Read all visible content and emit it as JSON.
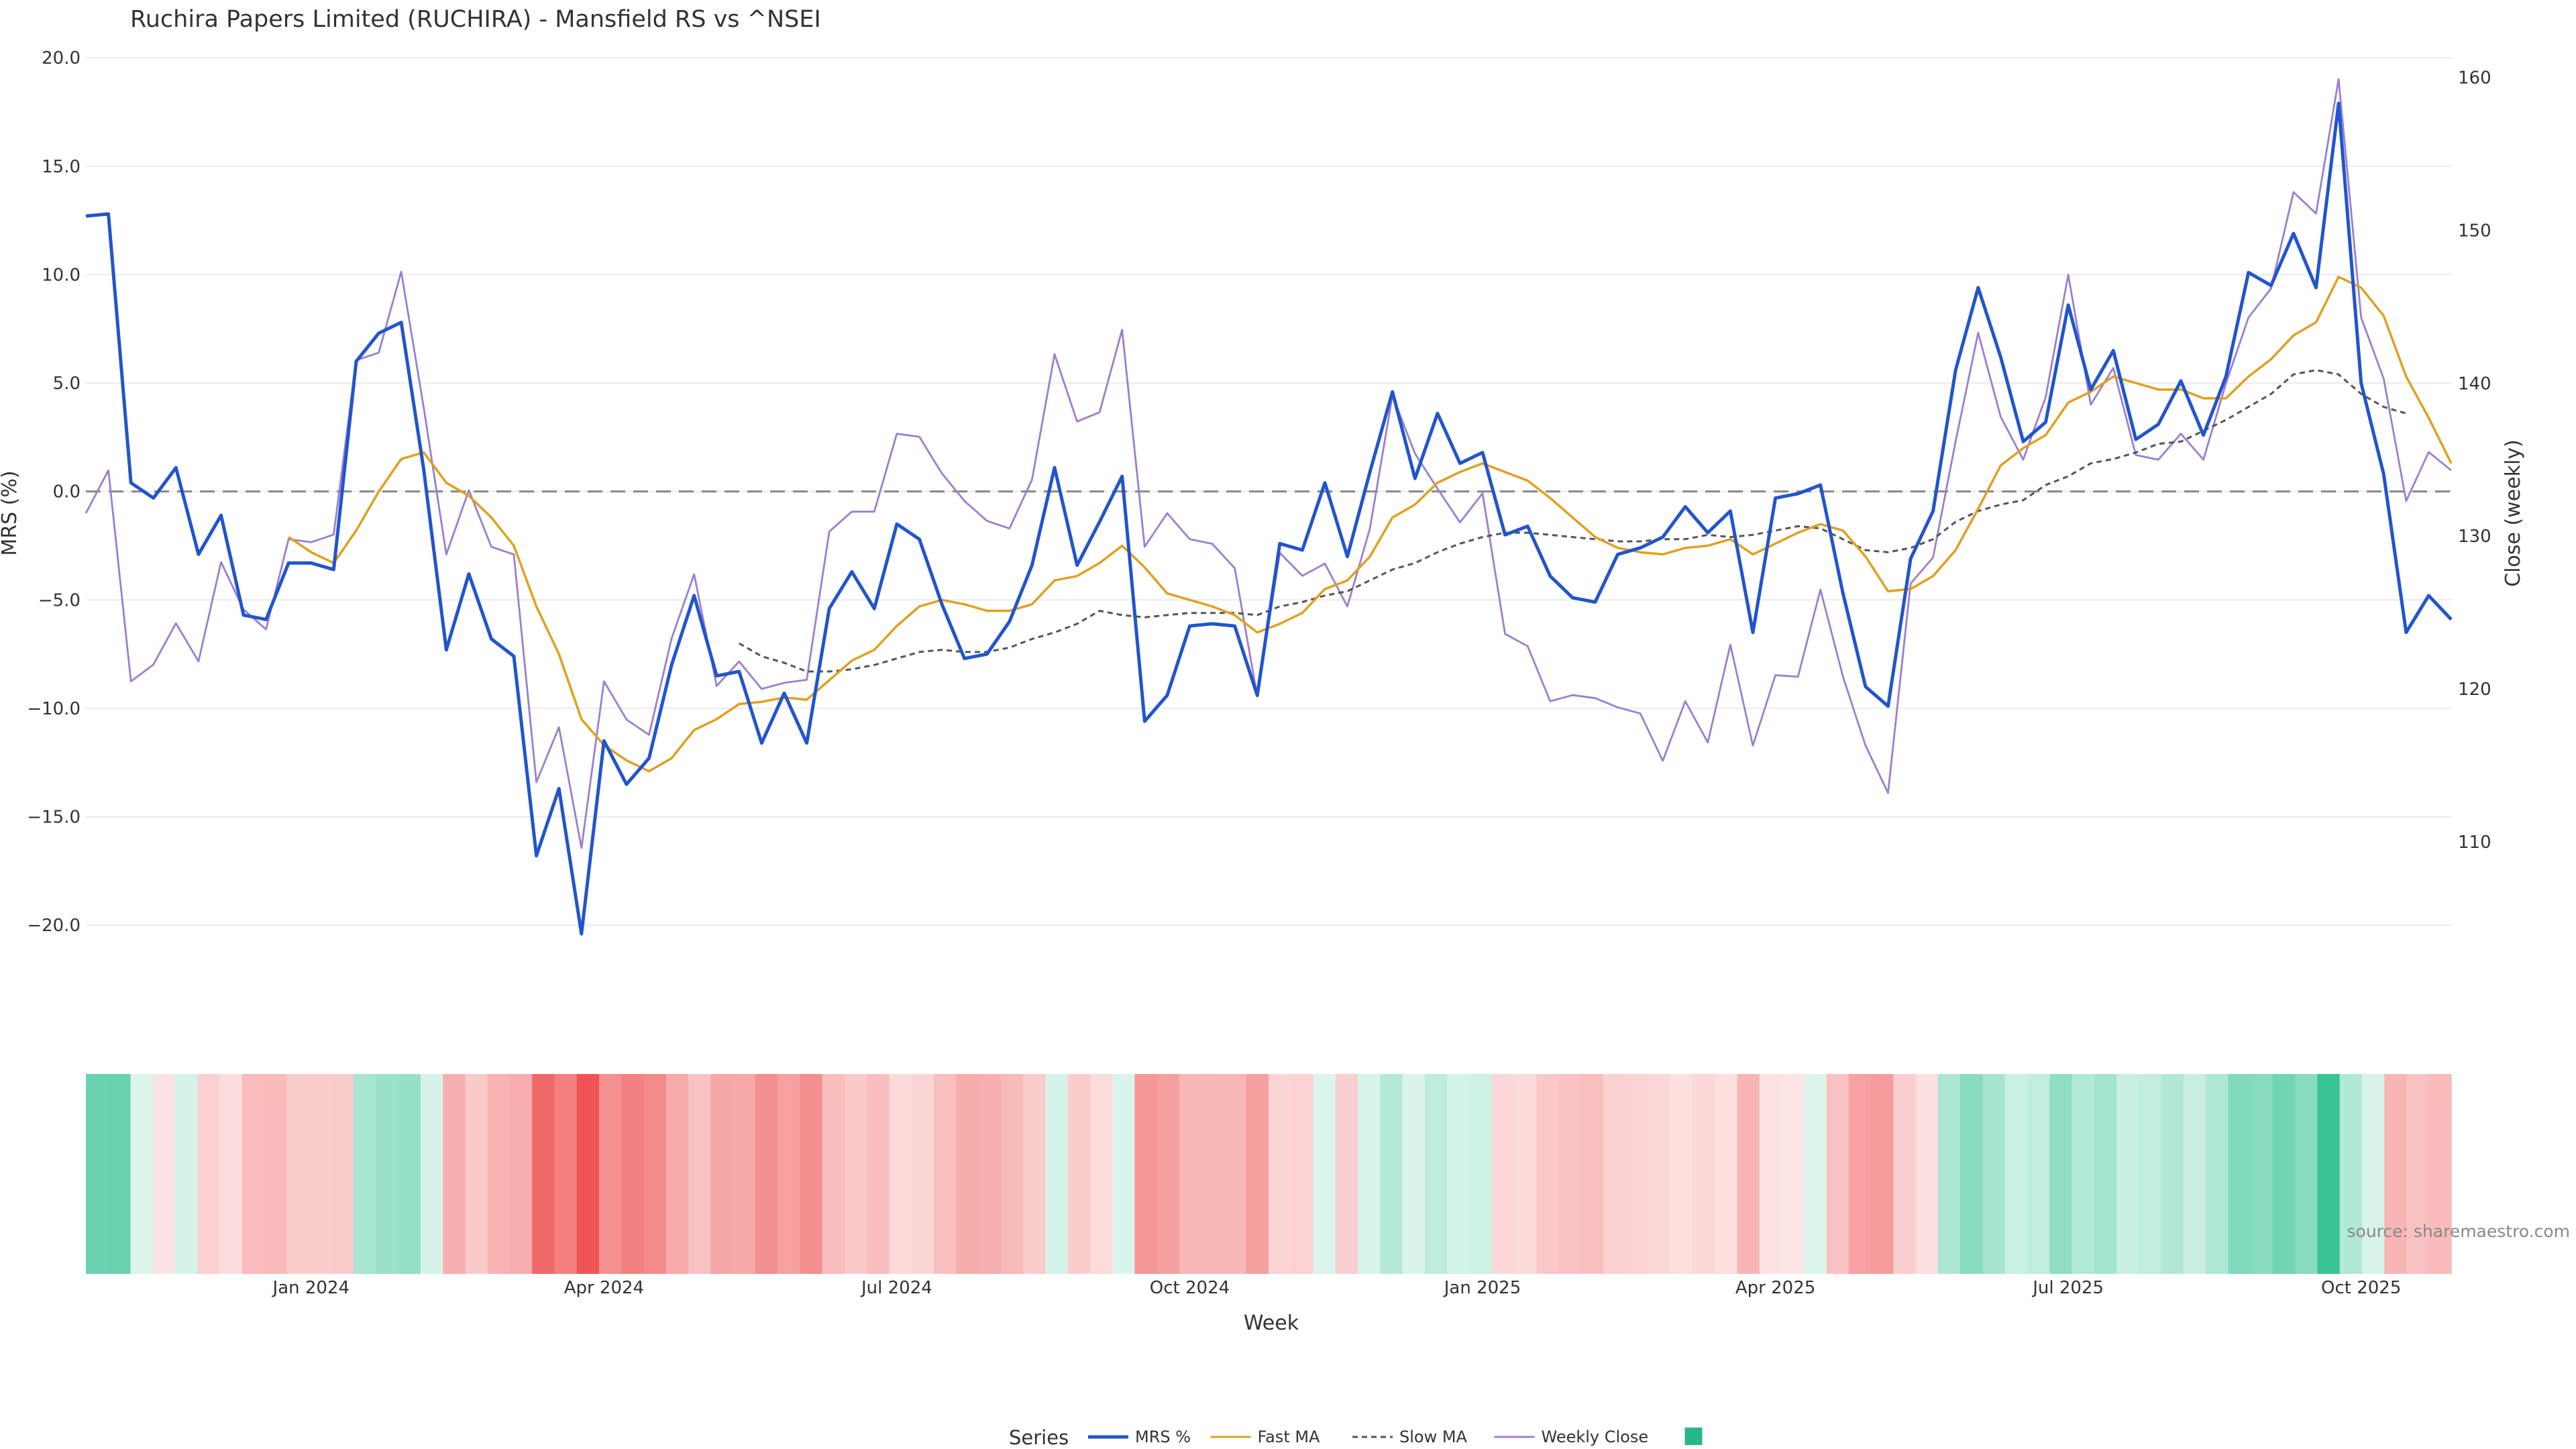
{
  "chart_data": {
    "type": "line",
    "title": "Ruchira Papers Limited (RUCHIRA) - Mansfield RS vs ^NSEI",
    "xlabel": "Week",
    "ylabel_left": "MRS (%)",
    "ylabel_right": "Close (weekly)",
    "ylim_left": [
      -22.5,
      20.5
    ],
    "ylim_right": [
      101,
      162
    ],
    "yticks_left": [
      20,
      15,
      10,
      5,
      0,
      -5,
      -10,
      -15,
      -20
    ],
    "ytick_labels_left": [
      "20.0",
      "15.0",
      "10.0",
      "5.0",
      "0.0",
      "−5.0",
      "−10.0",
      "−15.0",
      "−20.0"
    ],
    "yticks_right": [
      160,
      150,
      140,
      130,
      120,
      110
    ],
    "ytick_labels_right": [
      "160",
      "150",
      "140",
      "130",
      "120",
      "110"
    ],
    "x_tick_labels": [
      "Jan 2024",
      "Apr 2024",
      "Jul 2024",
      "Oct 2024",
      "Jan 2025",
      "Apr 2025",
      "Jul 2025",
      "Oct 2025"
    ],
    "x_tick_index": [
      10,
      23,
      36,
      49,
      62,
      75,
      88,
      101
    ],
    "zero_line": 0,
    "grid": true,
    "legend_position": "bottom-center",
    "legend_title": "Series",
    "legend_swatch_color": "#2ab58c",
    "watermark": "source: sharemaestro.com",
    "series": [
      {
        "name": "MRS %",
        "color": "#2255cc",
        "axis": "left",
        "start": 0,
        "values": [
          12.7,
          12.8,
          0.4,
          -0.3,
          1.1,
          -2.9,
          -1.1,
          -5.7,
          -5.9,
          -3.3,
          -3.3,
          -3.6,
          6.0,
          7.3,
          7.8,
          1.0,
          -7.3,
          -3.8,
          -6.8,
          -7.6,
          -16.8,
          -13.7,
          -20.4,
          -11.5,
          -13.5,
          -12.3,
          -8.0,
          -4.8,
          -8.5,
          -8.3,
          -11.6,
          -9.3,
          -11.6,
          -5.4,
          -3.7,
          -5.4,
          -1.5,
          -2.2,
          -5.2,
          -7.7,
          -7.5,
          -6.0,
          -3.4,
          1.1,
          -3.4,
          -1.4,
          0.7,
          -10.6,
          -9.4,
          -6.2,
          -6.1,
          -6.2,
          -9.4,
          -2.4,
          -2.7,
          0.4,
          -3.0,
          0.9,
          4.6,
          0.6,
          3.6,
          1.3,
          1.8,
          -2.0,
          -1.6,
          -3.9,
          -4.9,
          -5.1,
          -2.9,
          -2.6,
          -2.1,
          -0.7,
          -1.9,
          -0.9,
          -6.5,
          -0.3,
          -0.1,
          0.3,
          -4.7,
          -9.0,
          -9.9,
          -3.1,
          -0.9,
          5.6,
          9.4,
          6.2,
          2.3,
          3.2,
          8.6,
          4.7,
          6.5,
          2.4,
          3.1,
          5.1,
          2.6,
          5.3,
          10.1,
          9.5,
          11.9,
          9.4,
          17.9,
          5.0,
          0.8,
          -6.5,
          -4.8,
          -5.9
        ]
      },
      {
        "name": "Fast MA",
        "color": "#e0a020",
        "axis": "left",
        "start": 9,
        "values": [
          -2.1,
          -2.8,
          -3.3,
          -1.8,
          0.0,
          1.5,
          1.8,
          0.4,
          -0.2,
          -1.2,
          -2.5,
          -5.3,
          -7.5,
          -10.5,
          -11.7,
          -12.4,
          -12.9,
          -12.3,
          -11.0,
          -10.5,
          -9.8,
          -9.7,
          -9.5,
          -9.6,
          -8.7,
          -7.8,
          -7.3,
          -6.2,
          -5.3,
          -5.0,
          -5.2,
          -5.5,
          -5.5,
          -5.2,
          -4.1,
          -3.9,
          -3.3,
          -2.5,
          -3.5,
          -4.7,
          -5.0,
          -5.3,
          -5.7,
          -6.5,
          -6.1,
          -5.6,
          -4.5,
          -4.1,
          -3.0,
          -1.2,
          -0.6,
          0.4,
          0.9,
          1.3,
          0.9,
          0.5,
          -0.3,
          -1.2,
          -2.1,
          -2.6,
          -2.8,
          -2.9,
          -2.6,
          -2.5,
          -2.2,
          -2.9,
          -2.4,
          -1.9,
          -1.5,
          -1.8,
          -3.0,
          -4.6,
          -4.5,
          -3.9,
          -2.7,
          -0.8,
          1.2,
          2.0,
          2.6,
          4.1,
          4.6,
          5.3,
          5.0,
          4.7,
          4.7,
          4.3,
          4.3,
          5.3,
          6.1,
          7.2,
          7.8,
          9.9,
          9.4,
          8.1,
          5.3,
          3.4,
          1.3
        ]
      },
      {
        "name": "Slow MA",
        "color": "#555555",
        "axis": "left",
        "dashed": true,
        "start": 29,
        "values": [
          -7.0,
          -7.6,
          -7.9,
          -8.3,
          -8.3,
          -8.2,
          -8.0,
          -7.7,
          -7.4,
          -7.3,
          -7.4,
          -7.4,
          -7.2,
          -6.8,
          -6.5,
          -6.1,
          -5.5,
          -5.7,
          -5.8,
          -5.7,
          -5.6,
          -5.6,
          -5.6,
          -5.7,
          -5.3,
          -5.1,
          -4.8,
          -4.6,
          -4.1,
          -3.6,
          -3.3,
          -2.8,
          -2.4,
          -2.1,
          -1.9,
          -1.9,
          -2.0,
          -2.1,
          -2.2,
          -2.3,
          -2.3,
          -2.2,
          -2.2,
          -2.0,
          -2.1,
          -2.0,
          -1.8,
          -1.6,
          -1.7,
          -2.2,
          -2.7,
          -2.8,
          -2.6,
          -2.2,
          -1.4,
          -0.9,
          -0.6,
          -0.4,
          0.3,
          0.7,
          1.3,
          1.5,
          1.8,
          2.2,
          2.3,
          2.8,
          3.3,
          3.9,
          4.5,
          5.4,
          5.6,
          5.4,
          4.5,
          3.9,
          3.6
        ]
      },
      {
        "name": "Weekly Close",
        "color": "#9b7fd0",
        "axis": "right",
        "start": 0,
        "values": [
          131.5,
          134.3,
          120.5,
          121.6,
          124.3,
          121.8,
          128.3,
          125.2,
          123.9,
          129.8,
          129.6,
          130.1,
          141.5,
          142.0,
          147.3,
          138.4,
          128.8,
          133.0,
          129.3,
          128.8,
          113.9,
          117.5,
          109.6,
          120.5,
          118.0,
          117.0,
          123.3,
          127.5,
          120.2,
          121.8,
          120.0,
          120.4,
          120.6,
          130.3,
          131.6,
          131.6,
          136.7,
          136.5,
          134.1,
          132.3,
          131.0,
          130.5,
          133.7,
          141.9,
          137.5,
          138.1,
          143.5,
          129.3,
          131.5,
          129.8,
          129.5,
          127.9,
          119.5,
          128.9,
          127.4,
          128.2,
          125.4,
          130.5,
          139.2,
          135.4,
          133.1,
          130.9,
          132.8,
          123.6,
          122.8,
          119.2,
          119.6,
          119.4,
          118.8,
          118.4,
          115.3,
          119.2,
          116.5,
          122.9,
          116.3,
          120.9,
          120.8,
          126.5,
          120.8,
          116.3,
          113.2,
          126.9,
          128.6,
          136.2,
          143.3,
          137.8,
          135.0,
          139.1,
          147.1,
          138.6,
          141.0,
          135.3,
          135.0,
          136.7,
          135.0,
          140.0,
          144.3,
          146.2,
          152.5,
          151.1,
          159.9,
          144.3,
          140.3,
          132.3,
          135.5,
          134.3
        ]
      }
    ],
    "heatmap": {
      "type": "heatmap",
      "values": [
        12.7,
        12.8,
        0.4,
        -0.3,
        1.1,
        -2.9,
        -1.1,
        -5.7,
        -5.9,
        -3.3,
        -3.3,
        -3.6,
        6.0,
        7.3,
        7.8,
        1.0,
        -7.3,
        -3.8,
        -6.8,
        -7.6,
        -16.8,
        -13.7,
        -20.4,
        -11.5,
        -13.5,
        -12.3,
        -8.0,
        -4.8,
        -8.5,
        -8.3,
        -11.6,
        -9.3,
        -11.6,
        -5.4,
        -3.7,
        -5.4,
        -1.5,
        -2.2,
        -5.2,
        -7.7,
        -7.5,
        -6.0,
        -3.4,
        1.1,
        -3.4,
        -1.4,
        0.7,
        -10.6,
        -9.4,
        -6.2,
        -6.1,
        -6.2,
        -9.4,
        -2.4,
        -2.7,
        0.4,
        -3.0,
        0.9,
        4.6,
        0.6,
        3.6,
        1.3,
        1.8,
        -2.0,
        -1.6,
        -3.9,
        -4.9,
        -5.1,
        -2.9,
        -2.6,
        -2.1,
        -0.7,
        -1.9,
        -0.9,
        -6.5,
        -0.3,
        -0.1,
        0.3,
        -4.7,
        -9.0,
        -9.9,
        -3.1,
        -0.9,
        5.6,
        9.4,
        6.2,
        2.3,
        3.2,
        8.6,
        4.7,
        6.5,
        2.4,
        3.1,
        5.1,
        2.6,
        5.3,
        10.1,
        9.5,
        11.9,
        9.4,
        17.9,
        5.0,
        0.8,
        -6.5,
        -4.8,
        -5.9
      ],
      "positive_color": "#2bc08f",
      "negative_color": "#ef5555"
    }
  }
}
